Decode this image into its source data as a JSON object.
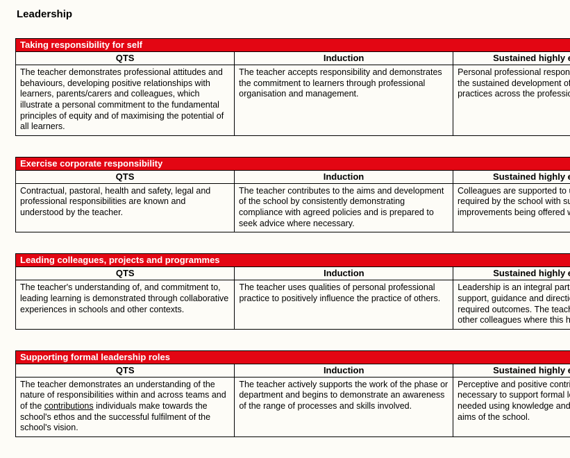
{
  "page": {
    "title": "Leadership"
  },
  "colors": {
    "section_header_bg": "#e30613",
    "section_header_text": "#ffffff",
    "page_bg": "#fdfcf7",
    "border": "#000000",
    "text": "#000000"
  },
  "column_headers": {
    "qts": "QTS",
    "induction": "Induction",
    "sustained": "Sustained highly effective practice"
  },
  "sections": [
    {
      "title": "Taking responsibility for self",
      "qts": "The teacher demonstrates professional attitudes and behaviours, developing positive relationships with learners, parents/carers and colleagues, which illustrate a personal commitment to the fundamental principles of equity and of maximising the potential of all learners.",
      "induction": "The teacher accepts responsibility and demonstrates the commitment to learners through professional organisation and management.",
      "sustained": "Personal professional responsibility is used to promote the sustained development of highly effective teaching practices across the profession."
    },
    {
      "title": "Exercise corporate responsibility",
      "qts": "Contractual, pastoral, health and safety, legal and professional responsibilities are known and understood by the teacher.",
      "induction": "The teacher contributes to the aims and development of the school by consistently demonstrating compliance with agreed policies and is prepared to seek advice where necessary.",
      "sustained": "Colleagues are supported to understand the principles required by the school with suggestions for improvements being offered where appropriate."
    },
    {
      "title": "Leading colleagues, projects and programmes",
      "qts": "The teacher's understanding of, and commitment to, leading learning is demonstrated through collaborative experiences in schools and other contexts.",
      "induction": "The teacher uses qualities of personal professional practice to positively influence the practice of others.",
      "sustained": "Leadership is an integral part of practice through the support, guidance and direction of others to achieve required outcomes. The teacher uses the experience of other colleagues where this helps them to flourish."
    },
    {
      "title": "Supporting formal leadership roles",
      "qts_parts": {
        "pre": "The teacher demonstrates an understanding of the nature of responsibilities within and across teams and of the ",
        "underlined": "contributions",
        "post": " individuals make towards the school's ethos and the successful fulfilment of the school's vision."
      },
      "induction": "The teacher actively supports the work of the phase or department and begins to demonstrate an awareness of the range of processes and skills involved.",
      "sustained": "Perceptive and positive contributions are made where necessary to support formal leadership wherever it is needed using knowledge and experience to fulfil the aims of the school."
    }
  ]
}
